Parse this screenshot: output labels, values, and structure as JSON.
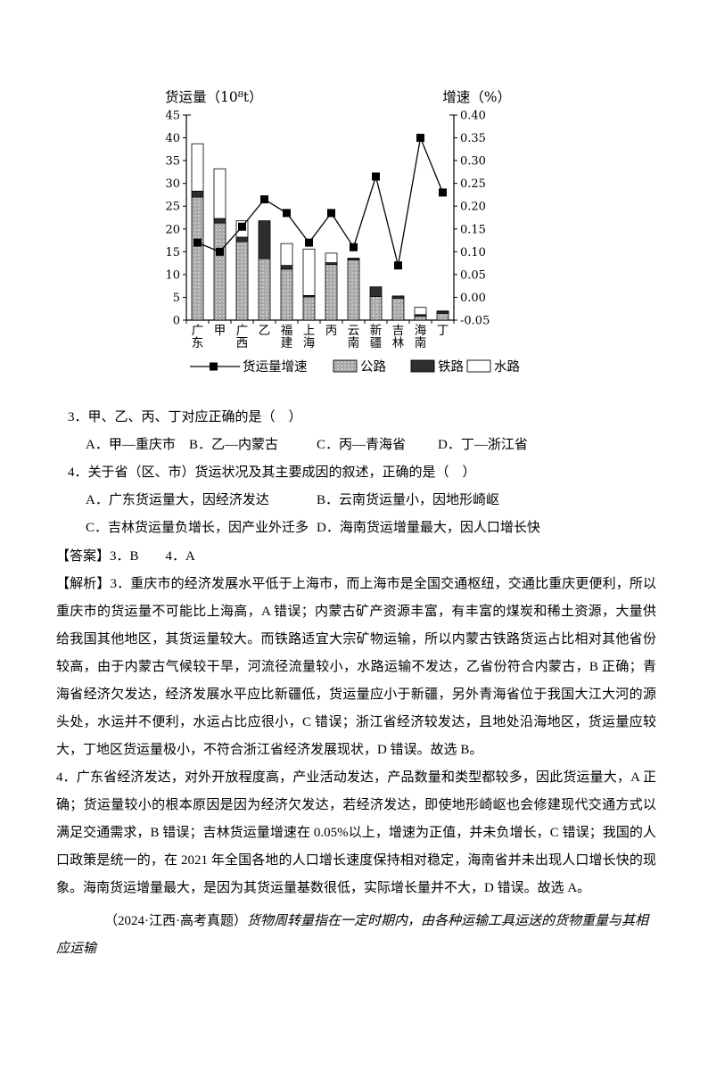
{
  "chart_data": {
    "type": "bar",
    "stacked": true,
    "categories": [
      "广东",
      "甲",
      "广西",
      "乙",
      "福建",
      "上海",
      "丙",
      "云南",
      "新疆",
      "吉林",
      "海南",
      "丁"
    ],
    "series": [
      {
        "name": "公路",
        "type": "bar",
        "values": [
          27,
          21.3,
          17.2,
          13.5,
          11.2,
          5.1,
          12.2,
          13.2,
          5.2,
          4.8,
          0.9,
          1.5
        ]
      },
      {
        "name": "铁路",
        "type": "bar",
        "values": [
          1.3,
          1.0,
          1.0,
          8.3,
          0.8,
          0.3,
          0.4,
          0.4,
          2.1,
          0.5,
          0.3,
          0.4
        ]
      },
      {
        "name": "水路",
        "type": "bar",
        "values": [
          10.4,
          10.9,
          3.6,
          0,
          4.8,
          10.2,
          2.1,
          0,
          0,
          0,
          1.6,
          0.1
        ]
      },
      {
        "name": "货运量增速",
        "type": "line",
        "axis": "right",
        "values": [
          0.12,
          0.1,
          0.155,
          0.215,
          0.185,
          0.12,
          0.185,
          0.11,
          0.265,
          0.07,
          0.35,
          0.23
        ]
      }
    ],
    "ylabel_left": "货运量（10⁸t）",
    "ylabel_right": "增速（%）",
    "ylim_left": [
      0,
      45
    ],
    "ytick_step_left": 5,
    "ylim_right": [
      -0.05,
      0.4
    ],
    "ytick_step_right": 0.05,
    "legend": [
      "货运量增速",
      "公路",
      "铁路",
      "水路"
    ],
    "legend_position": "bottom",
    "grid": false
  },
  "colors": {
    "text": "#000000",
    "rail_fill": "#2e2e2e",
    "road_pattern": "#cccccc",
    "background": "#ffffff"
  },
  "questions": {
    "q3": {
      "stem": "3．甲、乙、丙、丁对应正确的是（　）",
      "options": [
        "A．甲—重庆市",
        "B．乙—内蒙古",
        "C．丙—青海省",
        "D．丁—浙江省"
      ]
    },
    "q4": {
      "stem": "4．关于省（区、市）货运状况及其主要成因的叙述，正确的是（　）",
      "options": [
        "A．广东货运量大，因经济发达",
        "B．云南货运量小，因地形崎岖",
        "C．吉林货运量负增长，因产业外迁多",
        "D．海南货运增量最大，因人口增长快"
      ]
    }
  },
  "answer": {
    "label": "【答案】",
    "text": "3．B　　4．A"
  },
  "analysis": {
    "label": "【解析】",
    "p3": "3．重庆市的经济发展水平低于上海市，而上海市是全国交通枢纽，交通比重庆更便利，所以重庆市的货运量不可能比上海高，A 错误；内蒙古矿产资源丰富，有丰富的煤炭和稀土资源，大量供给我国其他地区，其货运量较大。而铁路适宜大宗矿物运输，所以内蒙古铁路货运占比相对其他省份较高，由于内蒙古气候较干旱，河流径流量较小，水路运输不发达，乙省份符合内蒙古，B 正确；青海省经济欠发达，经济发展水平应比新疆低，货运量应小于新疆，另外青海省位于我国大江大河的源头处，水运并不便利，水运占比应很小，C 错误；浙江省经济较发达，且地处沿海地区，货运量应较大，丁地区货运量极小，不符合浙江省经济发展现状，D 错误。故选 B。",
    "p4": "4．广东省经济发达，对外开放程度高，产业活动发达，产品数量和类型都较多，因此货运量大，A 正确；货运量较小的根本原因是因为经济欠发达，若经济发达，即使地形崎岖也会修建现代交通方式以满足交通需求，B 错误；吉林货运量增速在 0.05%以上，增速为正值，并未负增长，C 错误；我国的人口政策是统一的，在 2021 年全国各地的人口增长速度保持相对稳定，海南省并未出现人口增长快的现象。海南货运增量最大，是因为其货运量基数很低，实际增长量并不大，D 错误。故选 A。"
  },
  "next_question": {
    "source": "（2024·江西·高考真题）",
    "intro": "货物周转量指在一定时期内，由各种运输工具运送的货物重量与其相应运输"
  }
}
